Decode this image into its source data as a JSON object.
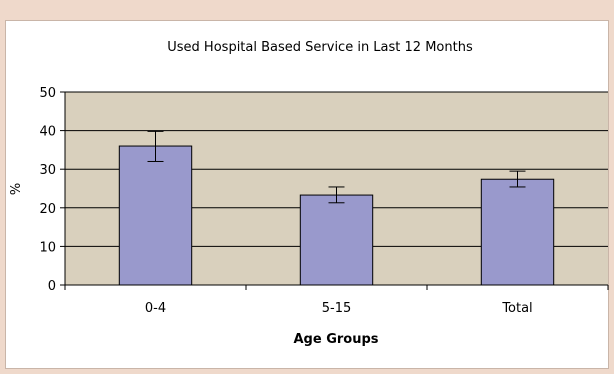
{
  "chart_data": {
    "type": "bar",
    "title": "Used Hospital Based Service in Last 12 Months",
    "xlabel": "Age Groups",
    "ylabel": "%",
    "categories": [
      "0-4",
      "5-15",
      "Total"
    ],
    "values": [
      36,
      23.3,
      27.4
    ],
    "error_low": [
      32,
      21.3,
      25.4
    ],
    "error_high": [
      39.8,
      25.4,
      29.5
    ],
    "ylim": [
      0,
      50
    ],
    "yticks": [
      0,
      10,
      20,
      30,
      40,
      50
    ],
    "grid": true,
    "legend": "none",
    "colors": {
      "plot_background": "#d9d0bd",
      "bar_fill": "#9999cc",
      "bar_stroke": "#000000",
      "gridline": "#000000"
    }
  }
}
